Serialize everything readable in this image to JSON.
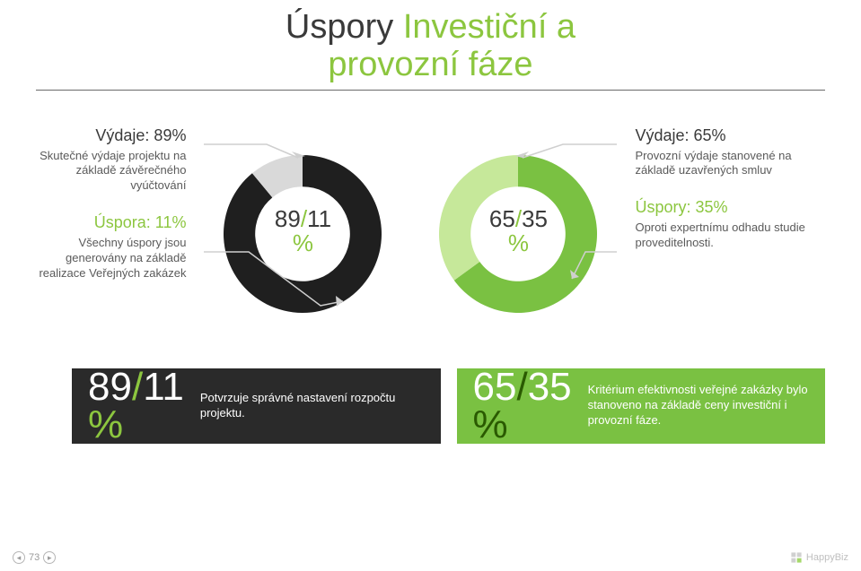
{
  "title": {
    "part1": "Úspory",
    "part2": "Investiční a",
    "part3": "provozní fáze"
  },
  "left": {
    "head": "Výdaje: 89%",
    "body": "Skutečné výdaje projektu na základě závěrečného vyúčtování",
    "accent": "Úspora: 11%",
    "accent_body": "Všechny úspory jsou generovány na základě realizace Veřejných zakázek"
  },
  "right": {
    "head": "Výdaje: 65%",
    "body": "Provozní výdaje stanovené na základě uzavřených smluv",
    "accent": "Úspory: 35%",
    "accent_body": "Oproti expertnímu odhadu studie proveditelnosti."
  },
  "donut1": {
    "type": "donut",
    "label_a": "89",
    "label_b": "11",
    "pct": "%",
    "seg_a_val": 89,
    "seg_b_val": 11,
    "seg_a_color": "#1f1f1f",
    "seg_b_color": "#d9d9d9",
    "inner_ratio": 0.6,
    "bg": "#ffffff",
    "pointer_color": "#cfcfcf"
  },
  "donut2": {
    "type": "donut",
    "label_a": "65",
    "label_b": "35",
    "pct": "%",
    "seg_a_val": 65,
    "seg_b_val": 35,
    "seg_a_color": "#7ac142",
    "seg_b_color": "#c6e89a",
    "inner_ratio": 0.6,
    "bg": "#ffffff",
    "pointer_color": "#cfcfcf"
  },
  "box1": {
    "big_a": "89",
    "big_b": "11",
    "pct": "%",
    "text": "Potvrzuje správné nastavení rozpočtu projektu.",
    "bg": "#2a2a2a"
  },
  "box2": {
    "big_a": "65",
    "big_b": "35",
    "pct": "%",
    "text": "Kritérium efektivnosti veřejné zakázky bylo stanoveno na základě ceny investiční i provozní fáze.",
    "bg": "#7ac142"
  },
  "footer": {
    "page": "73",
    "brand": "HappyBiz"
  }
}
